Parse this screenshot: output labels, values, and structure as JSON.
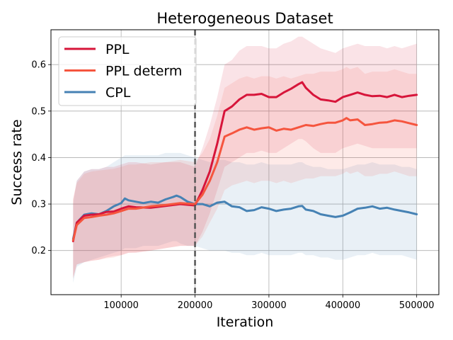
{
  "chart_data": {
    "type": "line",
    "title": "Heterogeneous Dataset",
    "xlabel": "Iteration",
    "ylabel": "Success rate",
    "xlim": [
      5000,
      530000
    ],
    "ylim": [
      0.105,
      0.675
    ],
    "xticks": [
      100000,
      200000,
      300000,
      400000,
      500000
    ],
    "yticks": [
      0.2,
      0.3,
      0.4,
      0.5,
      0.6
    ],
    "grid": true,
    "legend_position": "top-left",
    "vline": {
      "x": 200000,
      "style": "dashed",
      "color": "#555555"
    },
    "series": [
      {
        "name": "PPL",
        "color": "#d7153a",
        "x": [
          35000,
          40000,
          50000,
          60000,
          70000,
          80000,
          90000,
          100000,
          110000,
          120000,
          140000,
          160000,
          180000,
          200000,
          210000,
          220000,
          230000,
          240000,
          250000,
          260000,
          270000,
          280000,
          290000,
          300000,
          310000,
          320000,
          330000,
          340000,
          345000,
          350000,
          360000,
          370000,
          380000,
          390000,
          400000,
          410000,
          420000,
          430000,
          440000,
          450000,
          460000,
          470000,
          480000,
          490000,
          500000
        ],
        "values": [
          0.22,
          0.26,
          0.275,
          0.277,
          0.278,
          0.283,
          0.284,
          0.29,
          0.295,
          0.293,
          0.292,
          0.296,
          0.3,
          0.297,
          0.33,
          0.37,
          0.43,
          0.5,
          0.51,
          0.525,
          0.535,
          0.535,
          0.537,
          0.53,
          0.53,
          0.54,
          0.548,
          0.558,
          0.562,
          0.55,
          0.535,
          0.525,
          0.523,
          0.52,
          0.53,
          0.535,
          0.54,
          0.535,
          0.532,
          0.533,
          0.53,
          0.535,
          0.53,
          0.533,
          0.535
        ],
        "lower": [
          0.14,
          0.17,
          0.175,
          0.178,
          0.18,
          0.185,
          0.188,
          0.19,
          0.195,
          0.195,
          0.2,
          0.205,
          0.21,
          0.21,
          0.24,
          0.28,
          0.33,
          0.38,
          0.39,
          0.4,
          0.41,
          0.41,
          0.415,
          0.41,
          0.41,
          0.42,
          0.43,
          0.44,
          0.44,
          0.435,
          0.42,
          0.41,
          0.41,
          0.41,
          0.42,
          0.425,
          0.43,
          0.425,
          0.42,
          0.42,
          0.42,
          0.42,
          0.42,
          0.42,
          0.42
        ],
        "upper": [
          0.31,
          0.35,
          0.37,
          0.375,
          0.375,
          0.38,
          0.38,
          0.385,
          0.39,
          0.39,
          0.385,
          0.39,
          0.39,
          0.38,
          0.42,
          0.47,
          0.53,
          0.6,
          0.61,
          0.63,
          0.64,
          0.64,
          0.64,
          0.635,
          0.635,
          0.645,
          0.65,
          0.66,
          0.66,
          0.655,
          0.645,
          0.635,
          0.63,
          0.625,
          0.635,
          0.64,
          0.645,
          0.64,
          0.64,
          0.64,
          0.635,
          0.64,
          0.635,
          0.64,
          0.645
        ]
      },
      {
        "name": "PPL determ",
        "color": "#f5553e",
        "x": [
          35000,
          40000,
          50000,
          60000,
          70000,
          80000,
          90000,
          100000,
          110000,
          120000,
          140000,
          160000,
          180000,
          200000,
          210000,
          220000,
          230000,
          240000,
          250000,
          260000,
          270000,
          280000,
          290000,
          300000,
          310000,
          320000,
          330000,
          340000,
          350000,
          360000,
          370000,
          380000,
          390000,
          400000,
          405000,
          410000,
          420000,
          430000,
          440000,
          450000,
          460000,
          470000,
          480000,
          490000,
          500000
        ],
        "values": [
          0.222,
          0.255,
          0.27,
          0.272,
          0.275,
          0.277,
          0.28,
          0.285,
          0.29,
          0.29,
          0.295,
          0.298,
          0.302,
          0.3,
          0.32,
          0.35,
          0.39,
          0.445,
          0.452,
          0.46,
          0.465,
          0.46,
          0.463,
          0.465,
          0.458,
          0.462,
          0.46,
          0.465,
          0.47,
          0.468,
          0.472,
          0.475,
          0.475,
          0.48,
          0.485,
          0.48,
          0.482,
          0.47,
          0.472,
          0.475,
          0.476,
          0.48,
          0.478,
          0.474,
          0.47
        ],
        "lower": [
          0.14,
          0.17,
          0.175,
          0.178,
          0.18,
          0.183,
          0.185,
          0.19,
          0.195,
          0.196,
          0.2,
          0.205,
          0.21,
          0.21,
          0.23,
          0.26,
          0.29,
          0.33,
          0.34,
          0.345,
          0.35,
          0.345,
          0.35,
          0.35,
          0.345,
          0.35,
          0.345,
          0.35,
          0.355,
          0.355,
          0.36,
          0.36,
          0.36,
          0.365,
          0.37,
          0.365,
          0.37,
          0.36,
          0.36,
          0.365,
          0.365,
          0.37,
          0.365,
          0.36,
          0.36
        ],
        "upper": [
          0.31,
          0.345,
          0.365,
          0.37,
          0.372,
          0.374,
          0.376,
          0.38,
          0.385,
          0.385,
          0.39,
          0.39,
          0.395,
          0.39,
          0.41,
          0.44,
          0.49,
          0.55,
          0.56,
          0.57,
          0.575,
          0.57,
          0.575,
          0.575,
          0.57,
          0.575,
          0.57,
          0.575,
          0.58,
          0.58,
          0.585,
          0.585,
          0.585,
          0.59,
          0.595,
          0.59,
          0.595,
          0.58,
          0.585,
          0.585,
          0.585,
          0.59,
          0.585,
          0.58,
          0.58
        ]
      },
      {
        "name": "CPL",
        "color": "#4682b4",
        "x": [
          35000,
          40000,
          50000,
          60000,
          70000,
          80000,
          90000,
          100000,
          105000,
          110000,
          120000,
          130000,
          140000,
          150000,
          160000,
          170000,
          175000,
          180000,
          190000,
          200000,
          210000,
          220000,
          230000,
          240000,
          250000,
          260000,
          270000,
          280000,
          290000,
          300000,
          310000,
          320000,
          330000,
          340000,
          345000,
          350000,
          360000,
          370000,
          380000,
          390000,
          400000,
          410000,
          420000,
          430000,
          440000,
          450000,
          460000,
          470000,
          480000,
          490000,
          500000
        ],
        "values": [
          0.225,
          0.26,
          0.277,
          0.28,
          0.278,
          0.285,
          0.295,
          0.302,
          0.312,
          0.308,
          0.305,
          0.302,
          0.305,
          0.303,
          0.31,
          0.315,
          0.318,
          0.315,
          0.305,
          0.3,
          0.3,
          0.295,
          0.303,
          0.305,
          0.295,
          0.293,
          0.285,
          0.287,
          0.293,
          0.29,
          0.285,
          0.288,
          0.29,
          0.295,
          0.296,
          0.288,
          0.285,
          0.278,
          0.275,
          0.272,
          0.275,
          0.282,
          0.29,
          0.292,
          0.295,
          0.29,
          0.292,
          0.288,
          0.285,
          0.282,
          0.278
        ],
        "lower": [
          0.13,
          0.165,
          0.175,
          0.18,
          0.185,
          0.19,
          0.195,
          0.2,
          0.205,
          0.205,
          0.205,
          0.21,
          0.21,
          0.21,
          0.215,
          0.22,
          0.22,
          0.215,
          0.21,
          0.21,
          0.205,
          0.2,
          0.2,
          0.2,
          0.195,
          0.195,
          0.19,
          0.19,
          0.195,
          0.19,
          0.19,
          0.19,
          0.19,
          0.195,
          0.195,
          0.19,
          0.19,
          0.185,
          0.185,
          0.18,
          0.18,
          0.185,
          0.19,
          0.19,
          0.195,
          0.19,
          0.19,
          0.19,
          0.19,
          0.185,
          0.18
        ],
        "upper": [
          0.3,
          0.35,
          0.37,
          0.375,
          0.375,
          0.38,
          0.39,
          0.4,
          0.405,
          0.405,
          0.405,
          0.405,
          0.405,
          0.405,
          0.41,
          0.41,
          0.41,
          0.41,
          0.405,
          0.4,
          0.395,
          0.39,
          0.395,
          0.395,
          0.39,
          0.39,
          0.385,
          0.385,
          0.39,
          0.385,
          0.385,
          0.385,
          0.385,
          0.39,
          0.39,
          0.385,
          0.38,
          0.38,
          0.375,
          0.375,
          0.375,
          0.38,
          0.385,
          0.385,
          0.39,
          0.385,
          0.385,
          0.385,
          0.38,
          0.38,
          0.375
        ]
      }
    ]
  }
}
